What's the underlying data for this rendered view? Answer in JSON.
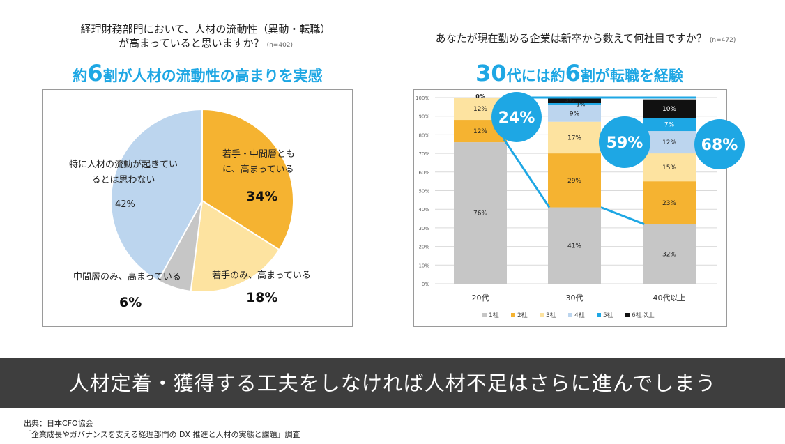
{
  "left": {
    "question_line1": "経理財務部門において、人材の流動性（異動・転職）",
    "question_line2": "が高まっていると思いますか？",
    "n_label": "(n=402)",
    "headline_pre": "約",
    "headline_big": "6",
    "headline_post": "割が人材の流動性の高まりを実感",
    "pie_labels": {
      "both_line1": "若手・中間層とも",
      "both_line2": "に、高まっている",
      "both_pct": "34%",
      "young_label": "若手のみ、高まっている",
      "young_pct": "18%",
      "mid_label": "中間層のみ、高まっている",
      "mid_pct": "6%",
      "none_line1": "特に人材の流動が起きてい",
      "none_line2": "るとは思わない",
      "none_pct": "42%"
    }
  },
  "right": {
    "question": "あなたが現在勤める企業は新卒から数えて何社目ですか？",
    "n_label": "(n=472)",
    "headline_big1": "30",
    "headline_mid": "代には約",
    "headline_big2": "6",
    "headline_post": "割が転職を経験",
    "callouts": [
      "24%",
      "59%",
      "68%"
    ]
  },
  "banner": "人材定着・獲得する工夫をしなければ人材不足はさらに進んでしまう",
  "source_line1": "出典：日本CFO協会",
  "source_line2": "「企業成長やガバナンスを支える経理部門の DX 推進と人材の実態と課題」調査",
  "colors": {
    "accent": "#1ea7e4",
    "s1": "#c6c6c6",
    "s2": "#f5b331",
    "s3": "#fde3a0",
    "s4": "#bcd5ee",
    "s5": "#1ea7e4",
    "s6": "#111111"
  },
  "chart_data": [
    {
      "type": "pie",
      "categories": [
        "若手・中間層ともに、高まっている",
        "若手のみ、高まっている",
        "中間層のみ、高まっている",
        "特に人材の流動が起きているとは思わない"
      ],
      "values": [
        34,
        18,
        6,
        42
      ],
      "colors": [
        "#f5b331",
        "#fde3a0",
        "#c6c6c6",
        "#bcd5ee"
      ]
    },
    {
      "type": "bar",
      "stacked": true,
      "categories": [
        "20代",
        "30代",
        "40代以上"
      ],
      "series": [
        {
          "name": "1社",
          "values": [
            76,
            41,
            32
          ],
          "labels": [
            "76%",
            "41%",
            "32%"
          ]
        },
        {
          "name": "2社",
          "values": [
            12,
            29,
            23
          ],
          "labels": [
            "12%",
            "29%",
            "23%"
          ]
        },
        {
          "name": "3社",
          "values": [
            12,
            17,
            15
          ],
          "labels": [
            "12%",
            "17%",
            "15%"
          ]
        },
        {
          "name": "4社",
          "values": [
            0,
            9,
            12
          ],
          "labels": [
            "",
            "9%",
            "12%"
          ]
        },
        {
          "name": "5社",
          "values": [
            0,
            1,
            7
          ],
          "labels": [
            "",
            "1%",
            "7%"
          ]
        },
        {
          "name": "6社以上",
          "values": [
            0,
            3,
            10
          ],
          "labels": [
            "0%",
            "3%",
            "10%"
          ]
        }
      ],
      "yticks": [
        "0%",
        "10%",
        "20%",
        "30%",
        "40%",
        "50%",
        "60%",
        "70%",
        "80%",
        "90%",
        "100%"
      ],
      "ylim": [
        0,
        100
      ],
      "legend": "bottom",
      "grid": true
    }
  ]
}
